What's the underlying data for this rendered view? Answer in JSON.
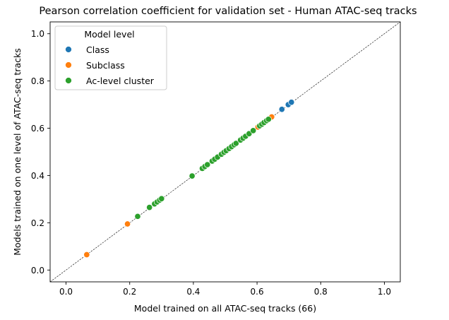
{
  "chart_data": {
    "type": "scatter",
    "title": "Pearson correlation coefficient for validation set - Human ATAC-seq tracks",
    "xlabel": "Model trained on all ATAC-seq tracks (66)",
    "ylabel": "Models trained on one level of ATAC-seq tracks",
    "xlim": [
      -0.05,
      1.05
    ],
    "ylim": [
      -0.05,
      1.05
    ],
    "xticks": [
      "0.0",
      "0.2",
      "0.4",
      "0.6",
      "0.8",
      "1.0"
    ],
    "yticks": [
      "0.0",
      "0.2",
      "0.4",
      "0.6",
      "0.8",
      "1.0"
    ],
    "grid": false,
    "diagonal_reference_line": true,
    "legend": {
      "title": "Model level",
      "placement": "upper-left"
    },
    "series": [
      {
        "name": "Class",
        "color": "#1f77b4",
        "points": [
          [
            0.678,
            0.68
          ],
          [
            0.698,
            0.7
          ],
          [
            0.708,
            0.71
          ]
        ]
      },
      {
        "name": "Subclass",
        "color": "#ff7f0e",
        "points": [
          [
            0.065,
            0.065
          ],
          [
            0.193,
            0.195
          ],
          [
            0.603,
            0.605
          ],
          [
            0.646,
            0.648
          ]
        ]
      },
      {
        "name": "Ac-level cluster",
        "color": "#2ca02c",
        "points": [
          [
            0.225,
            0.227
          ],
          [
            0.262,
            0.265
          ],
          [
            0.278,
            0.28
          ],
          [
            0.286,
            0.288
          ],
          [
            0.294,
            0.296
          ],
          [
            0.3,
            0.302
          ],
          [
            0.396,
            0.398
          ],
          [
            0.428,
            0.43
          ],
          [
            0.436,
            0.438
          ],
          [
            0.444,
            0.446
          ],
          [
            0.459,
            0.461
          ],
          [
            0.467,
            0.469
          ],
          [
            0.476,
            0.478
          ],
          [
            0.488,
            0.49
          ],
          [
            0.496,
            0.498
          ],
          [
            0.503,
            0.505
          ],
          [
            0.512,
            0.514
          ],
          [
            0.52,
            0.522
          ],
          [
            0.528,
            0.53
          ],
          [
            0.534,
            0.536
          ],
          [
            0.548,
            0.55
          ],
          [
            0.556,
            0.558
          ],
          [
            0.564,
            0.566
          ],
          [
            0.575,
            0.577
          ],
          [
            0.588,
            0.59
          ],
          [
            0.608,
            0.61
          ],
          [
            0.615,
            0.617
          ],
          [
            0.622,
            0.624
          ],
          [
            0.63,
            0.632
          ],
          [
            0.636,
            0.638
          ]
        ]
      }
    ]
  }
}
